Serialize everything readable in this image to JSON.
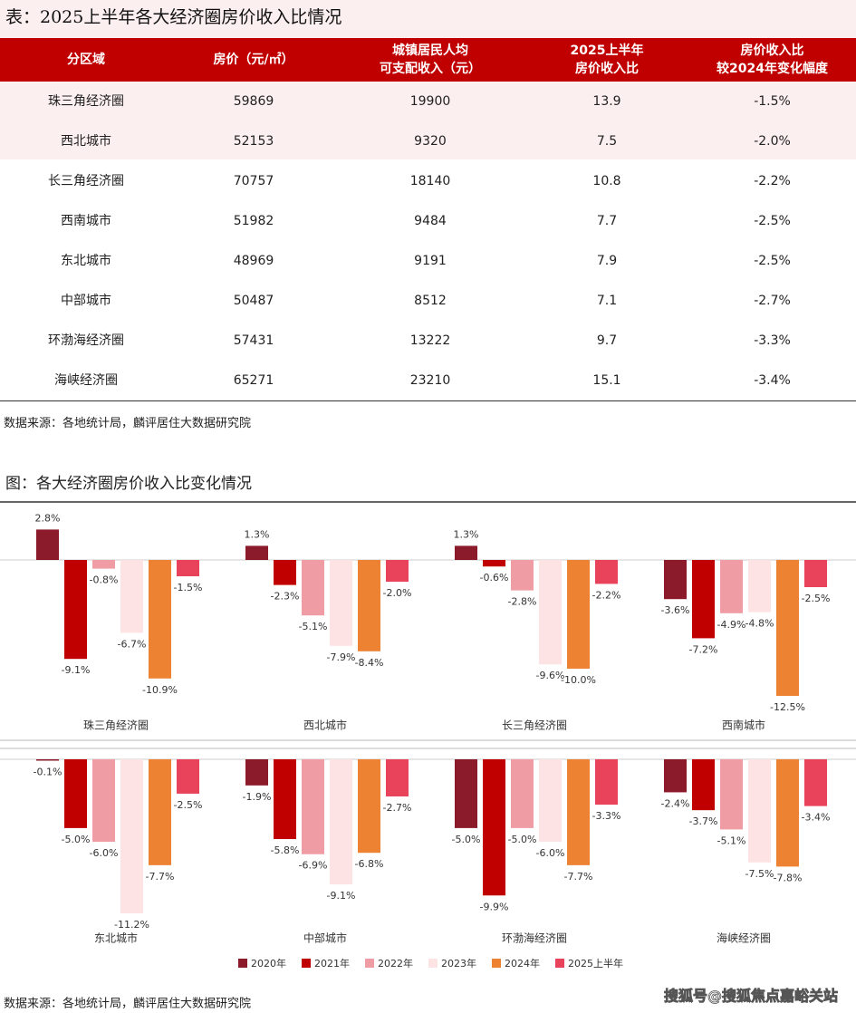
{
  "table": {
    "title": "表：2025上半年各大经济圈房价收入比情况",
    "header": [
      [
        "分区域"
      ],
      [
        "房价（元/㎡）"
      ],
      [
        "城镇居民人均",
        "可支配收入（元）"
      ],
      [
        "2025上半年",
        "房价收入比"
      ],
      [
        "房价收入比",
        "较2024年变化幅度"
      ]
    ],
    "rows": [
      [
        "珠三角经济圈",
        59869,
        19900,
        13.9,
        "-1.5%"
      ],
      [
        "西北城市",
        52153,
        9320,
        7.5,
        "-2.0%"
      ],
      [
        "长三角经济圈",
        70757,
        18140,
        10.8,
        "-2.2%"
      ],
      [
        "西南城市",
        51982,
        9484,
        7.7,
        "-2.5%"
      ],
      [
        "东北城市",
        48969,
        9191,
        7.9,
        "-2.5%"
      ],
      [
        "中部城市",
        50487,
        8512,
        7.1,
        "-2.7%"
      ],
      [
        "环渤海经济圈",
        57431,
        13222,
        9.7,
        "-3.3%"
      ],
      [
        "海峡经济圈",
        65271,
        23210,
        15.1,
        "-3.4%"
      ]
    ],
    "source": "数据来源：各地统计局，麟评居住大数据研究院"
  },
  "chart_data": {
    "type": "bar",
    "title": "图：各大经济圈房价收入比变化情况",
    "categories": [
      "珠三角经济圈",
      "西北城市",
      "长三角经济圈",
      "西南城市",
      "东北城市",
      "中部城市",
      "环渤海经济圈",
      "海峡经济圈"
    ],
    "series": [
      {
        "name": "2020年",
        "color": "#8b1a2b",
        "values": [
          2.8,
          1.3,
          1.3,
          -3.6,
          -0.1,
          -1.9,
          -5.0,
          -2.4
        ],
        "value_labels": [
          "2.8%",
          "1.3%",
          "1.3%",
          "-3.6%",
          "-0.1%",
          "-1.9%",
          "-5.0%",
          "-2.4%"
        ]
      },
      {
        "name": "2021年",
        "color": "#c00000",
        "values": [
          -9.1,
          -2.3,
          -0.6,
          -7.2,
          -5.0,
          -5.8,
          -9.9,
          -3.7
        ],
        "value_labels": [
          "-9.1%",
          "-2.3%",
          "-0.6%",
          "-7.2%",
          "-5.0%",
          "-5.8%",
          "-9.9%",
          "-3.7%"
        ]
      },
      {
        "name": "2022年",
        "color": "#f09ca4",
        "values": [
          -0.8,
          -5.1,
          -2.8,
          -4.9,
          -6.0,
          -6.9,
          -5.0,
          -5.1
        ],
        "value_labels": [
          "-0.8%",
          "-5.1%",
          "-2.8%",
          "-4.9%",
          "-6.0%",
          "-6.9%",
          "-5.0%",
          "-5.1%"
        ]
      },
      {
        "name": "2023年",
        "color": "#fde3e3",
        "values": [
          -6.7,
          -7.9,
          -9.6,
          -4.8,
          -11.2,
          -9.1,
          -6.0,
          -7.5
        ],
        "value_labels": [
          "-6.7%",
          "-7.9%",
          "-9.6%",
          "-4.8%",
          "-11.2%",
          "-9.1%",
          "-6.0%",
          "-7.5%"
        ]
      },
      {
        "name": "2024年",
        "color": "#ed8232",
        "values": [
          -10.9,
          -8.4,
          -10.0,
          -12.5,
          -7.7,
          -6.8,
          -7.7,
          -7.8
        ],
        "value_labels": [
          "-10.9%",
          "-8.4%",
          "-10.0%",
          "-12.5%",
          "-7.7%",
          "-6.8%",
          "-7.7%",
          "-7.8%"
        ]
      },
      {
        "name": "2025上半年",
        "color": "#e8435a",
        "values": [
          -1.5,
          -2.0,
          -2.2,
          -2.5,
          -2.5,
          -2.7,
          -3.3,
          -3.4
        ],
        "value_labels": [
          "-1.5%",
          "-2.0%",
          "-2.2%",
          "-2.5%",
          "-2.5%",
          "-2.7%",
          "-3.3%",
          "-3.4%"
        ]
      }
    ],
    "source": "数据来源：各地统计局，麟评居住大数据研究院",
    "watermark": "搜狐号@搜狐焦点嘉峪关站"
  }
}
